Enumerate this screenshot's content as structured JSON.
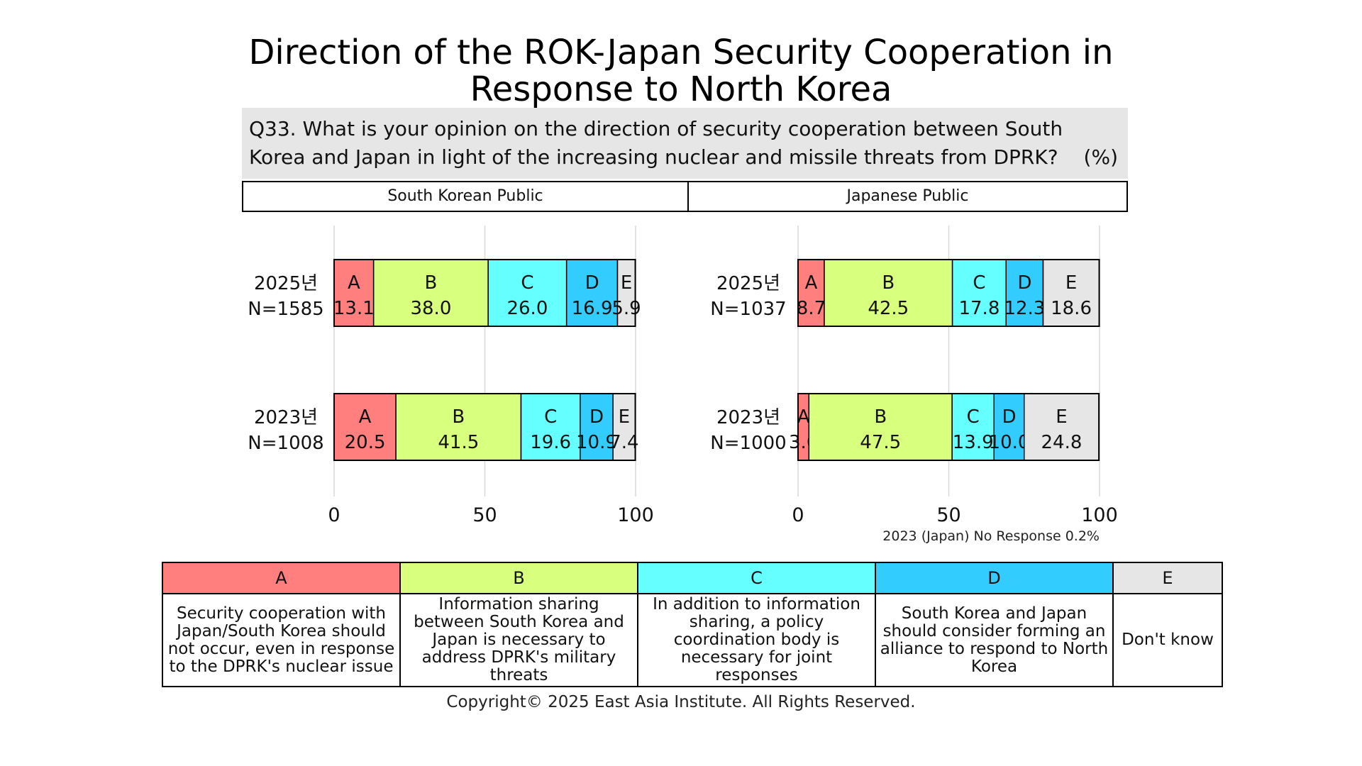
{
  "title": "Direction of the ROK-Japan Security Cooperation in Response to North Korea",
  "question": {
    "number": "Q33.",
    "text": "What is your opinion on the direction of security cooperation between South Korea and Japan in light of the increasing nuclear and missile threats from DPRK?",
    "unit": "(%)"
  },
  "note": "2023 (Japan) No Response 0.2%",
  "copyright": "Copyright© 2025 East Asia Institute. All Rights Reserved.",
  "legend": [
    {
      "key": "A",
      "color": "#ff7f7f",
      "text": "Security cooperation with Japan/South Korea should not occur, even in response to the DPRK's nuclear issue"
    },
    {
      "key": "B",
      "color": "#d9ff7f",
      "text": "Information sharing between South Korea and Japan is necessary to address DPRK's military threats"
    },
    {
      "key": "C",
      "color": "#66ffff",
      "text": "In addition to information sharing, a policy coordination body is necessary for joint responses"
    },
    {
      "key": "D",
      "color": "#33ccff",
      "text": "South Korea and Japan should consider forming an alliance to respond to North Korea"
    },
    {
      "key": "E",
      "color": "#e6e6e6",
      "text": "Don't know"
    }
  ],
  "chart_data": [
    {
      "type": "bar",
      "orientation": "horizontal",
      "stacked": true,
      "title": "South Korean Public",
      "xlim": [
        0,
        100
      ],
      "xticks": [
        0,
        50,
        100
      ],
      "categories": [
        {
          "year": "2025년",
          "n": "N=1585"
        },
        {
          "year": "2023년",
          "n": "N=1008"
        }
      ],
      "series": [
        {
          "name": "A",
          "values": [
            13.1,
            20.5
          ]
        },
        {
          "name": "B",
          "values": [
            38.0,
            41.5
          ]
        },
        {
          "name": "C",
          "values": [
            26.0,
            19.6
          ]
        },
        {
          "name": "D",
          "values": [
            16.9,
            10.9
          ]
        },
        {
          "name": "E",
          "values": [
            5.9,
            7.4
          ]
        }
      ]
    },
    {
      "type": "bar",
      "orientation": "horizontal",
      "stacked": true,
      "title": "Japanese Public",
      "xlim": [
        0,
        100
      ],
      "xticks": [
        0,
        50,
        100
      ],
      "categories": [
        {
          "year": "2025년",
          "n": "N=1037"
        },
        {
          "year": "2023년",
          "n": "N=1000"
        }
      ],
      "series": [
        {
          "name": "A",
          "values": [
            8.7,
            3.6
          ]
        },
        {
          "name": "B",
          "values": [
            42.5,
            47.5
          ]
        },
        {
          "name": "C",
          "values": [
            17.8,
            13.9
          ]
        },
        {
          "name": "D",
          "values": [
            12.3,
            10.0
          ]
        },
        {
          "name": "E",
          "values": [
            18.6,
            24.8
          ]
        }
      ]
    }
  ]
}
